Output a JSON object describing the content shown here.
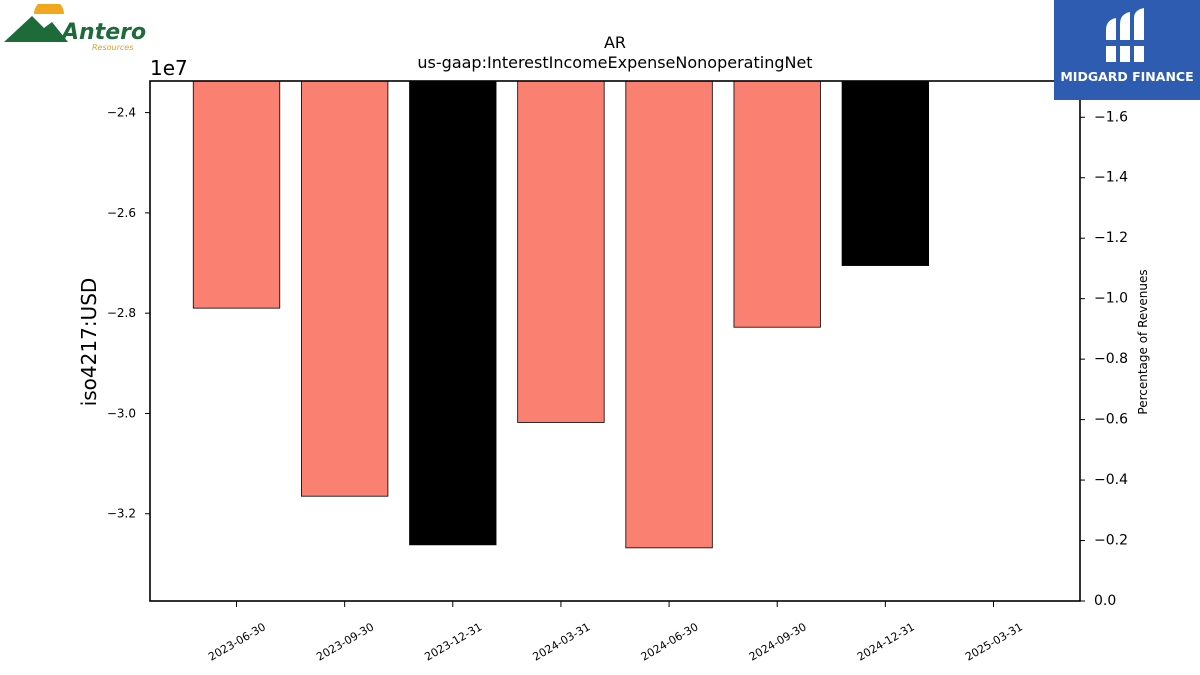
{
  "logos": {
    "left": {
      "name": "Antero",
      "sub": "Resources"
    },
    "right": {
      "name": "MIDGARD FINANCE"
    }
  },
  "chart_data": {
    "type": "bar",
    "title": "AR",
    "subtitle": "us-gaap:InterestIncomeExpenseNonoperatingNet",
    "ylabel": "iso4217:USD",
    "y2label": "Percentage of Revenues",
    "scale_label": "1e7",
    "categories": [
      "2023-06-30",
      "2023-09-30",
      "2023-12-31",
      "2024-03-31",
      "2024-06-30",
      "2024-09-30",
      "2024-12-31",
      "2025-03-31"
    ],
    "values": [
      -27900000,
      -31650000,
      -32620000,
      -30180000,
      -32680000,
      -28280000,
      -27050000,
      null
    ],
    "bar_colors": [
      "#fa8072",
      "#fa8072",
      "#000000",
      "#fa8072",
      "#fa8072",
      "#fa8072",
      "#000000",
      "#fa8072"
    ],
    "ylim": [
      -33740000,
      -23370000
    ],
    "yticks": [
      -32000000,
      -30000000,
      -28000000,
      -26000000,
      -24000000
    ],
    "ytick_labels": [
      "−3.2",
      "−3.0",
      "−2.8",
      "−2.6",
      "−2.4"
    ],
    "y2lim": [
      0.0,
      -1.72
    ],
    "y2ticks": [
      0.0,
      -0.2,
      -0.4,
      -0.6,
      -0.8,
      -1.0,
      -1.2,
      -1.4,
      -1.6
    ],
    "y2tick_labels": [
      "0.0",
      "−0.2",
      "−0.4",
      "−0.6",
      "−0.8",
      "−1.0",
      "−1.2",
      "−1.4",
      "−1.6"
    ],
    "grid": false,
    "colors": {
      "salmon": "#fa8072",
      "black": "#000000"
    }
  }
}
